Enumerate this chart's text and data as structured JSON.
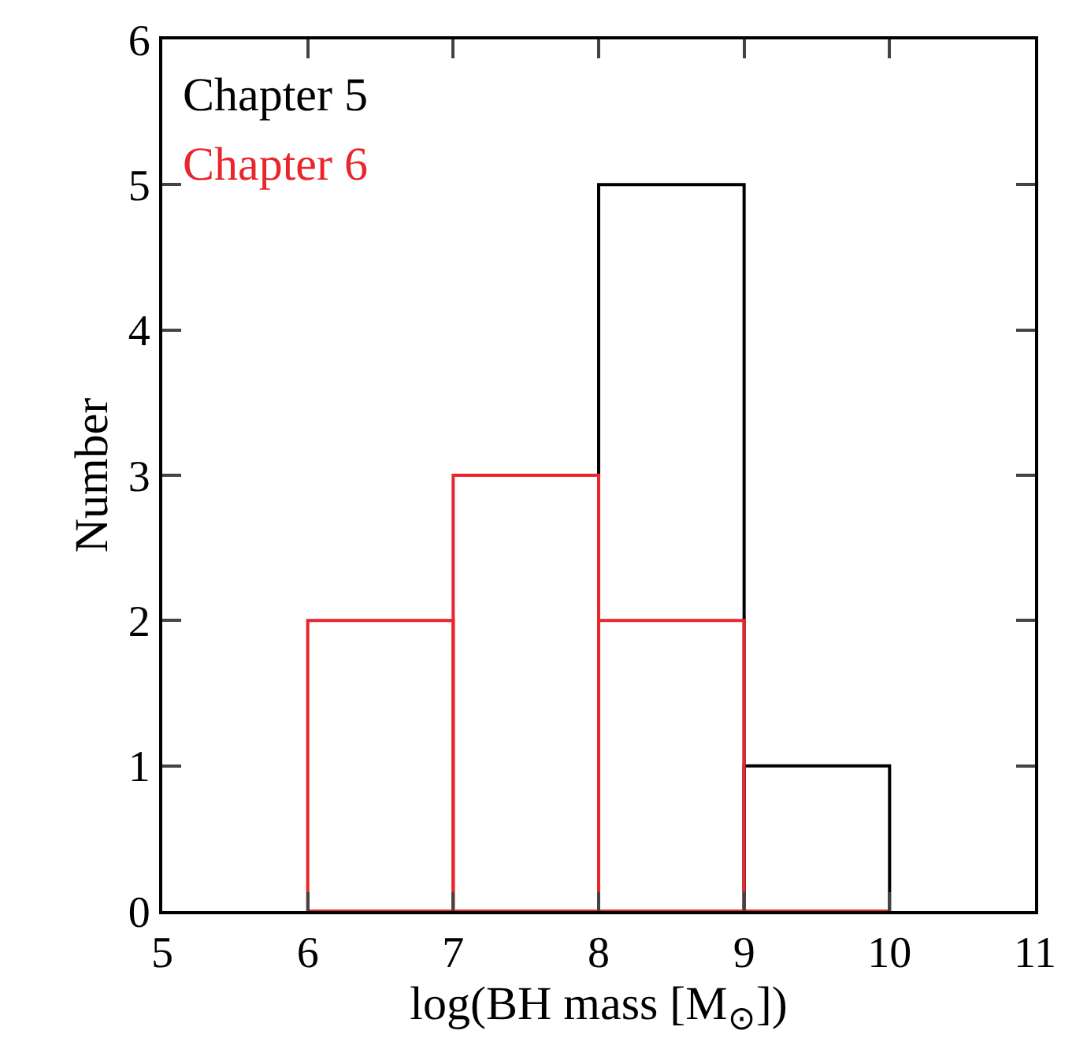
{
  "chart_data": {
    "type": "histogram",
    "xlabel": "log(BH mass [M$_{⊙}$])",
    "ylabel": "Number",
    "bins": [
      6,
      7,
      8,
      9,
      10
    ],
    "series": [
      {
        "name": "Chapter 5",
        "color": "#000000",
        "values": [
          0,
          0,
          5,
          1
        ]
      },
      {
        "name": "Chapter 6",
        "color": "#e8262b",
        "values": [
          2,
          3,
          2,
          0
        ]
      }
    ],
    "xlim": [
      5,
      11
    ],
    "xticks": [
      5,
      6,
      7,
      8,
      9,
      10,
      11
    ],
    "ylim": [
      0,
      6
    ],
    "yticks": [
      0,
      1,
      2,
      3,
      4,
      5,
      6
    ],
    "grid": false,
    "legend": "top left"
  }
}
